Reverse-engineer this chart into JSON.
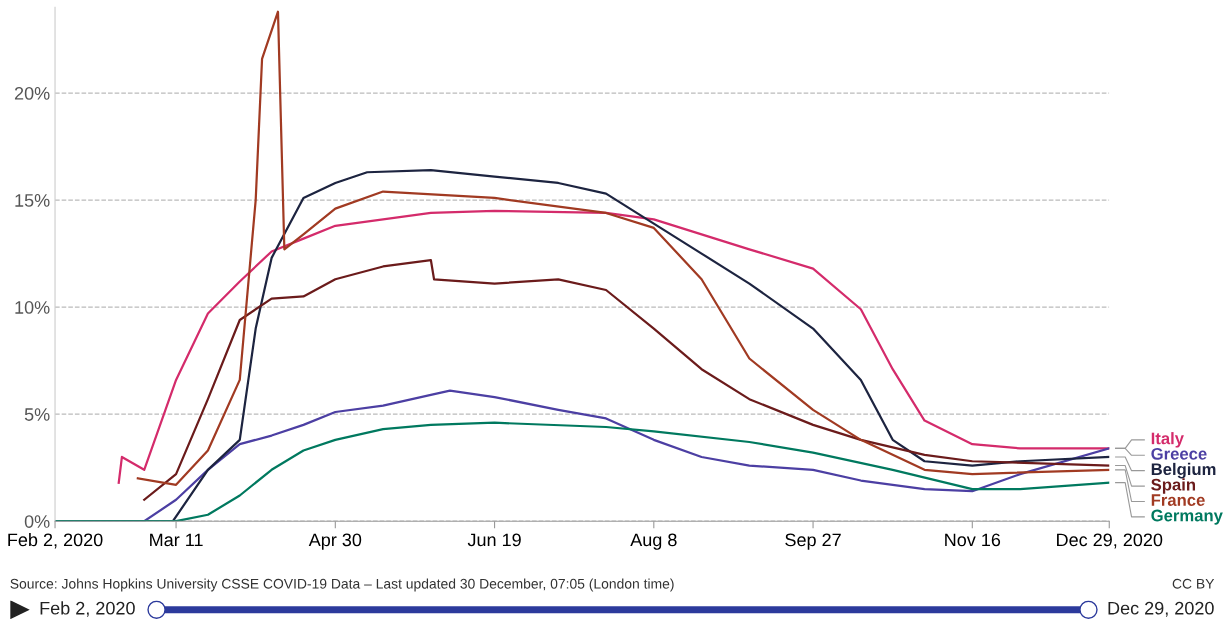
{
  "chart_data": {
    "type": "line",
    "xlim": [
      "2020-02-02",
      "2020-12-29"
    ],
    "xticks": [
      {
        "value": "2020-02-02",
        "label": "Feb 2, 2020"
      },
      {
        "value": "2020-03-11",
        "label": "Mar 11"
      },
      {
        "value": "2020-04-30",
        "label": "Apr 30"
      },
      {
        "value": "2020-06-19",
        "label": "Jun 19"
      },
      {
        "value": "2020-08-08",
        "label": "Aug 8"
      },
      {
        "value": "2020-09-27",
        "label": "Sep 27"
      },
      {
        "value": "2020-11-16",
        "label": "Nov 16"
      },
      {
        "value": "2020-12-29",
        "label": "Dec 29, 2020"
      }
    ],
    "ylim": [
      0,
      24
    ],
    "yticks": [
      {
        "value": 0,
        "label": "0%"
      },
      {
        "value": 5,
        "label": "5%"
      },
      {
        "value": 10,
        "label": "10%"
      },
      {
        "value": 15,
        "label": "15%"
      },
      {
        "value": 20,
        "label": "20%"
      }
    ],
    "grid": "y",
    "legend": "right",
    "marker": "none",
    "line_style": "solid",
    "series": [
      {
        "name": "Italy",
        "color": "#d42b6b",
        "x": [
          "2020-02-22",
          "2020-02-23",
          "2020-03-01",
          "2020-03-11",
          "2020-03-21",
          "2020-03-31",
          "2020-04-10",
          "2020-04-20",
          "2020-04-30",
          "2020-05-30",
          "2020-06-19",
          "2020-07-24",
          "2020-08-08",
          "2020-09-07",
          "2020-09-27",
          "2020-10-12",
          "2020-10-22",
          "2020-11-01",
          "2020-11-16",
          "2020-12-01",
          "2020-12-29"
        ],
        "values": [
          1.8,
          3.0,
          2.4,
          6.6,
          9.7,
          11.2,
          12.6,
          13.2,
          13.8,
          14.4,
          14.5,
          14.4,
          14.1,
          12.7,
          11.8,
          9.9,
          7.1,
          4.7,
          3.6,
          3.4,
          3.4
        ]
      },
      {
        "name": "Greece",
        "color": "#4c3fa3",
        "x": [
          "2020-02-02",
          "2020-03-01",
          "2020-03-11",
          "2020-03-21",
          "2020-03-31",
          "2020-04-10",
          "2020-04-20",
          "2020-04-30",
          "2020-05-15",
          "2020-05-30",
          "2020-06-05",
          "2020-06-19",
          "2020-07-09",
          "2020-07-24",
          "2020-08-08",
          "2020-08-23",
          "2020-09-07",
          "2020-09-27",
          "2020-10-12",
          "2020-11-01",
          "2020-11-16",
          "2020-12-01",
          "2020-12-29"
        ],
        "values": [
          0,
          0,
          1.0,
          2.4,
          3.6,
          4.0,
          4.5,
          5.1,
          5.4,
          5.9,
          6.1,
          5.8,
          5.2,
          4.8,
          3.8,
          3.0,
          2.6,
          2.4,
          1.9,
          1.5,
          1.4,
          2.2,
          3.4
        ]
      },
      {
        "name": "Belgium",
        "color": "#1d2440",
        "x": [
          "2020-03-10",
          "2020-03-21",
          "2020-03-31",
          "2020-04-05",
          "2020-04-10",
          "2020-04-20",
          "2020-04-30",
          "2020-05-10",
          "2020-05-30",
          "2020-06-19",
          "2020-07-09",
          "2020-07-24",
          "2020-08-08",
          "2020-08-23",
          "2020-09-07",
          "2020-09-27",
          "2020-10-12",
          "2020-10-22",
          "2020-11-01",
          "2020-11-16",
          "2020-12-01",
          "2020-12-29"
        ],
        "values": [
          0,
          2.4,
          3.8,
          9.0,
          12.3,
          15.1,
          15.8,
          16.3,
          16.4,
          16.1,
          15.8,
          15.3,
          13.9,
          12.5,
          11.1,
          9.0,
          6.6,
          3.8,
          2.8,
          2.6,
          2.8,
          3.0
        ]
      },
      {
        "name": "Spain",
        "color": "#6b1b1b",
        "x": [
          "2020-03-01",
          "2020-03-11",
          "2020-03-21",
          "2020-03-31",
          "2020-04-10",
          "2020-04-20",
          "2020-04-30",
          "2020-05-15",
          "2020-05-30",
          "2020-05-31",
          "2020-06-19",
          "2020-07-09",
          "2020-07-24",
          "2020-08-08",
          "2020-08-23",
          "2020-09-07",
          "2020-09-27",
          "2020-10-12",
          "2020-11-01",
          "2020-11-16",
          "2020-12-29"
        ],
        "values": [
          1.0,
          2.2,
          5.7,
          9.4,
          10.4,
          10.5,
          11.3,
          11.9,
          12.2,
          11.3,
          11.1,
          11.3,
          10.8,
          9.0,
          7.1,
          5.7,
          4.5,
          3.8,
          3.1,
          2.8,
          2.6
        ]
      },
      {
        "name": "France",
        "color": "#a13a22",
        "x": [
          "2020-02-28",
          "2020-03-11",
          "2020-03-21",
          "2020-03-31",
          "2020-04-05",
          "2020-04-07",
          "2020-04-12",
          "2020-04-14",
          "2020-04-20",
          "2020-04-30",
          "2020-05-15",
          "2020-06-19",
          "2020-07-24",
          "2020-08-08",
          "2020-08-23",
          "2020-09-07",
          "2020-09-27",
          "2020-10-12",
          "2020-11-01",
          "2020-11-16",
          "2020-12-29"
        ],
        "values": [
          2.0,
          1.7,
          3.3,
          6.6,
          15.0,
          21.6,
          23.8,
          12.7,
          13.4,
          14.6,
          15.4,
          15.1,
          14.4,
          13.7,
          11.3,
          7.6,
          5.2,
          3.8,
          2.4,
          2.2,
          2.4
        ]
      },
      {
        "name": "Germany",
        "color": "#00795f",
        "x": [
          "2020-02-02",
          "2020-03-11",
          "2020-03-21",
          "2020-03-31",
          "2020-04-10",
          "2020-04-20",
          "2020-04-30",
          "2020-05-15",
          "2020-05-30",
          "2020-06-19",
          "2020-07-24",
          "2020-08-08",
          "2020-09-07",
          "2020-09-27",
          "2020-10-22",
          "2020-11-16",
          "2020-12-01",
          "2020-12-29"
        ],
        "values": [
          0,
          0,
          0.3,
          1.2,
          2.4,
          3.3,
          3.8,
          4.3,
          4.5,
          4.6,
          4.4,
          4.2,
          3.7,
          3.2,
          2.4,
          1.5,
          1.5,
          1.8
        ]
      }
    ],
    "annotations": [
      "Source: Johns Hopkins University CSSE COVID-19 Data – Last updated 30 December, 07:05 (London time)",
      "CC BY",
      "Feb 2, 2020",
      "Dec 29, 2020"
    ]
  }
}
